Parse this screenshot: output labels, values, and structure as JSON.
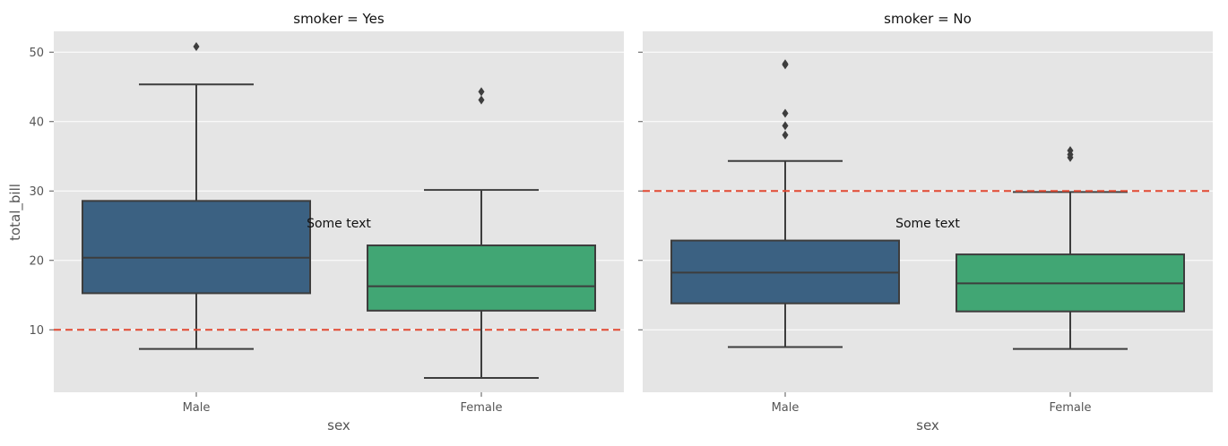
{
  "chart_data": {
    "type": "box",
    "ylabel": "total_bill",
    "ylim": [
      1,
      53
    ],
    "yticks": [
      "10",
      "20",
      "30",
      "40",
      "50"
    ],
    "grid": true,
    "colors": {
      "Male": "#3b6182",
      "Female": "#41a674",
      "reference_line": "#e24a33",
      "panel_bg": "#e5e5e5"
    },
    "facets": [
      {
        "title": "smoker = Yes",
        "xlabel": "sex",
        "categories": [
          "Male",
          "Female"
        ],
        "reference_line": 10,
        "annotation": {
          "text": "Some text",
          "x": 0.5,
          "y": 25
        },
        "boxes": [
          {
            "category": "Male",
            "whisker_low": 7.25,
            "q1": 15.27,
            "median": 20.39,
            "q3": 28.57,
            "whisker_high": 45.35,
            "outliers": [
              50.81
            ]
          },
          {
            "category": "Female",
            "whisker_low": 3.07,
            "q1": 12.76,
            "median": 16.27,
            "q3": 22.16,
            "whisker_high": 30.14,
            "outliers": [
              43.11,
              44.3
            ]
          }
        ]
      },
      {
        "title": "smoker = No",
        "xlabel": "sex",
        "categories": [
          "Male",
          "Female"
        ],
        "reference_line": 30,
        "annotation": {
          "text": "Some text",
          "x": 0.5,
          "y": 25
        },
        "boxes": [
          {
            "category": "Male",
            "whisker_low": 7.51,
            "q1": 13.81,
            "median": 18.24,
            "q3": 22.86,
            "whisker_high": 34.32,
            "outliers": [
              38.07,
              39.4,
              41.19,
              48.17,
              48.33
            ]
          },
          {
            "category": "Female",
            "whisker_low": 7.25,
            "q1": 12.65,
            "median": 16.69,
            "q3": 20.86,
            "whisker_high": 29.85,
            "outliers": [
              34.83,
              35.26,
              35.83
            ]
          }
        ]
      }
    ]
  }
}
